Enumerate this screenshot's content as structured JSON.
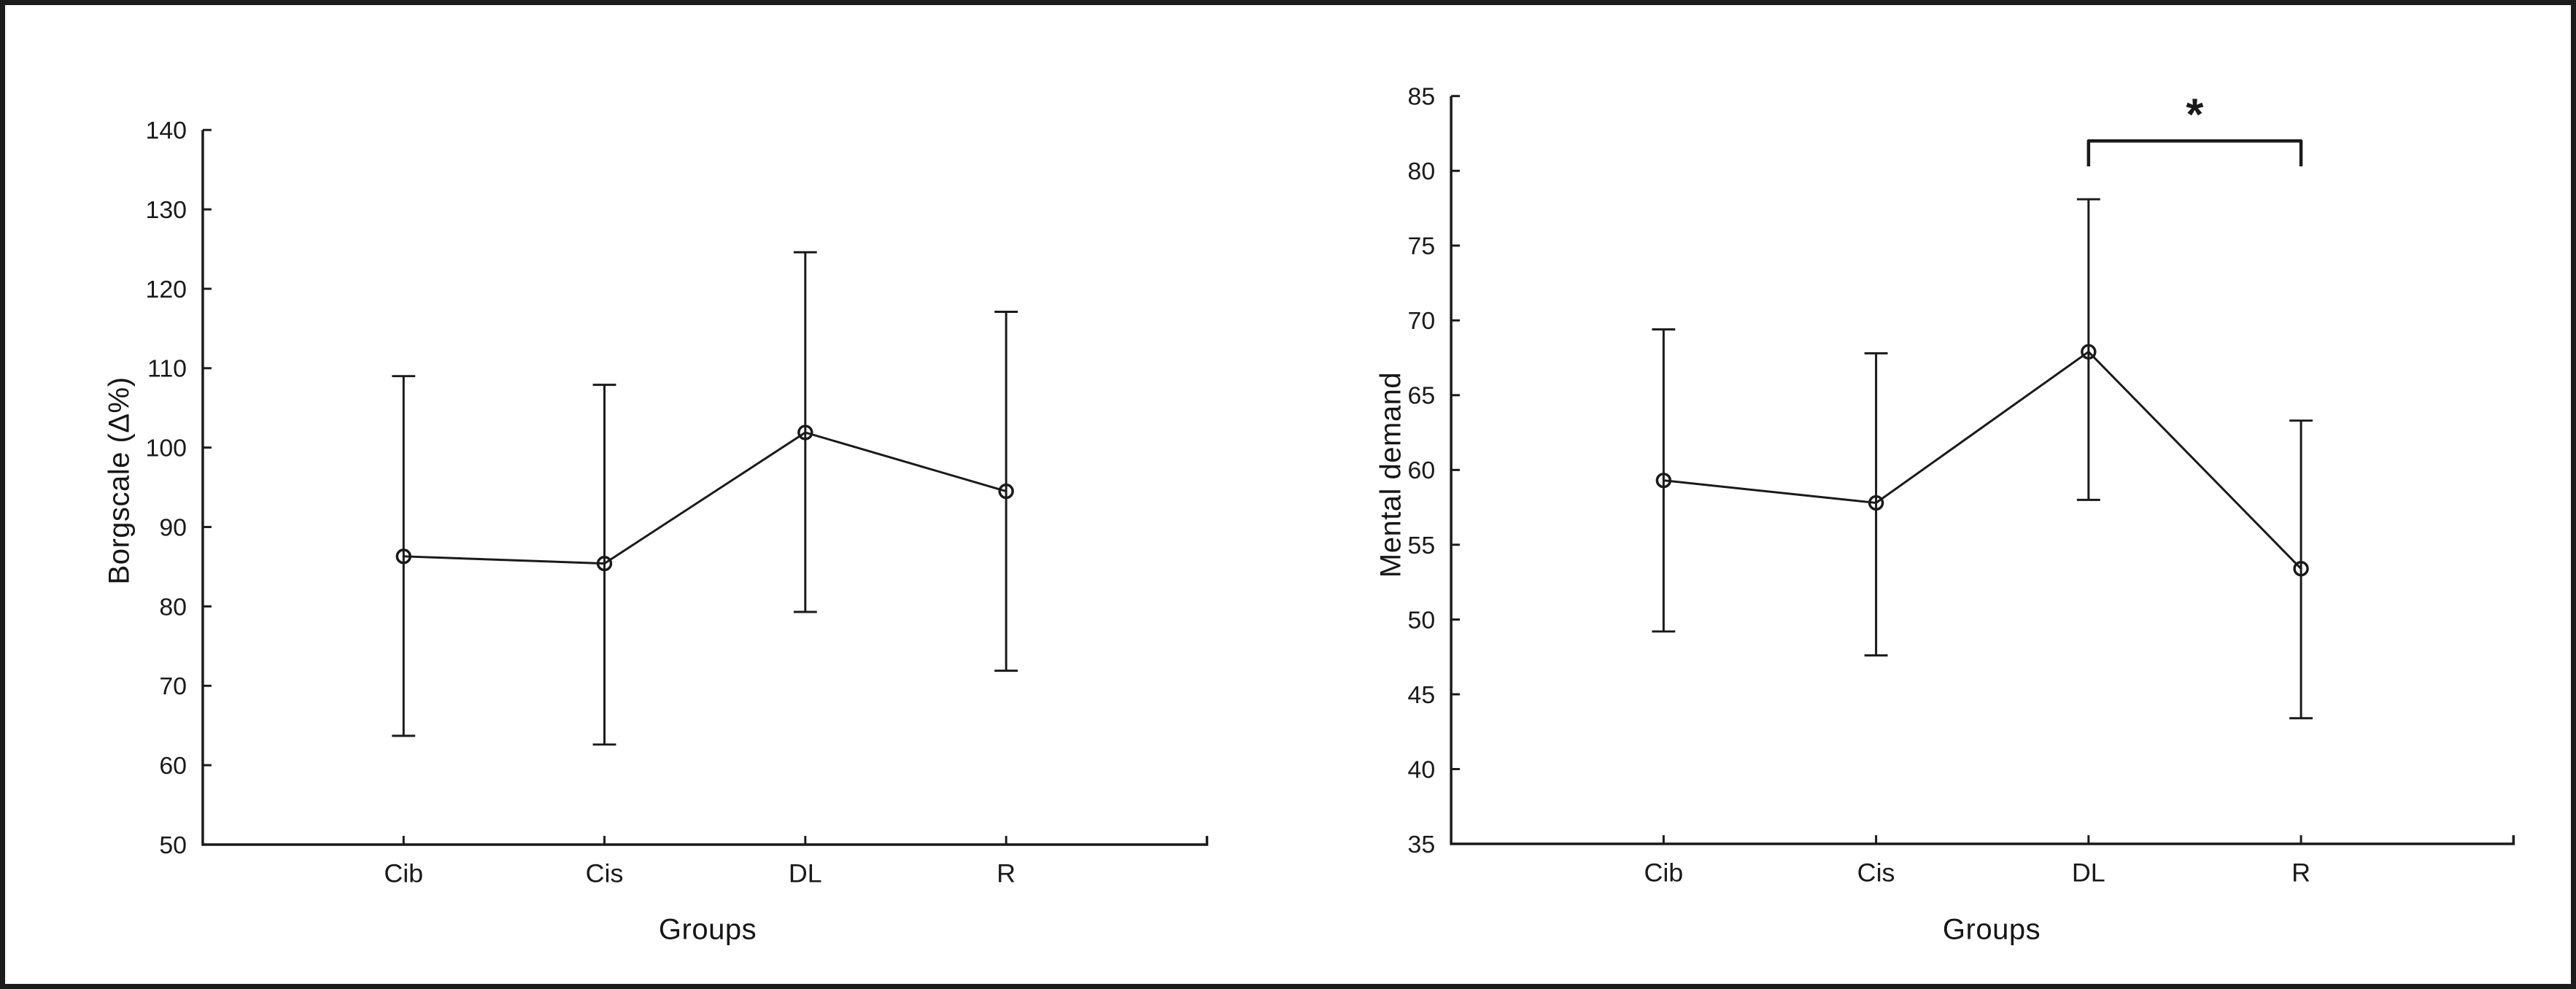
{
  "figure": {
    "background": "#ffffff",
    "border_color": "#1c1c1c",
    "ink_color": "#1a1a1a"
  },
  "chart_data": [
    {
      "type": "line",
      "panel": "left",
      "title": "",
      "categories": [
        "Cib",
        "Cis",
        "DL",
        "R"
      ],
      "xlabel": "Groups",
      "ylabel": "Borgscale (Δ%)",
      "ylim": [
        50,
        140
      ],
      "ytick_step": 10,
      "ytick_labels": [
        "50",
        "60",
        "70",
        "80",
        "90",
        "100",
        "110",
        "120",
        "130",
        "140"
      ],
      "grid": "off",
      "legend": "none",
      "marker": "open-circle",
      "series": [
        {
          "name": "mean",
          "values": [
            86.3,
            85.4,
            101.9,
            94.5
          ]
        }
      ],
      "error_bars": {
        "upper": [
          109.0,
          107.9,
          124.6,
          117.1
        ],
        "lower": [
          63.7,
          62.6,
          79.3,
          71.9
        ]
      }
    },
    {
      "type": "line",
      "panel": "right",
      "title": "",
      "categories": [
        "Cib",
        "Cis",
        "DL",
        "R"
      ],
      "xlabel": "Groups",
      "ylabel": "Mental demand",
      "ylim": [
        35,
        85
      ],
      "ytick_step": 5,
      "ytick_labels": [
        "35",
        "40",
        "45",
        "50",
        "55",
        "60",
        "65",
        "70",
        "75",
        "80",
        "85"
      ],
      "grid": "off",
      "legend": "none",
      "marker": "open-circle",
      "series": [
        {
          "name": "mean",
          "values": [
            59.3,
            57.8,
            67.9,
            53.4
          ]
        }
      ],
      "error_bars": {
        "upper": [
          69.4,
          67.8,
          78.1,
          63.3
        ],
        "lower": [
          49.2,
          47.6,
          58.0,
          43.4
        ]
      },
      "annotation": {
        "type": "significance-bracket",
        "from": "DL",
        "to": "R",
        "bar_y": 82.0,
        "tip_y": 80.3,
        "label": "*"
      }
    }
  ]
}
